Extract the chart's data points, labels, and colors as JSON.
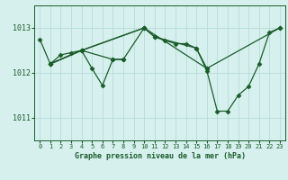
{
  "title": "Graphe pression niveau de la mer (hPa)",
  "bg_color": "#d6f0ee",
  "grid_color": "#b8dcd8",
  "line_color": "#1a5c2a",
  "xlim": [
    -0.5,
    23.5
  ],
  "ylim": [
    1010.5,
    1013.5
  ],
  "yticks": [
    1011,
    1012,
    1013
  ],
  "xticks": [
    0,
    1,
    2,
    3,
    4,
    5,
    6,
    7,
    8,
    9,
    10,
    11,
    12,
    13,
    14,
    15,
    16,
    17,
    18,
    19,
    20,
    21,
    22,
    23
  ],
  "series1_x": [
    0,
    1,
    2,
    3,
    4,
    5,
    6,
    7,
    8
  ],
  "series1_y": [
    1012.75,
    1012.2,
    1012.4,
    1012.45,
    1012.5,
    1012.1,
    1011.72,
    1012.3,
    1012.3
  ],
  "series2_x": [
    1,
    4,
    7,
    8,
    10,
    11,
    12,
    13,
    14,
    15,
    16
  ],
  "series2_y": [
    1012.2,
    1012.5,
    1012.3,
    1012.3,
    1013.0,
    1012.8,
    1012.72,
    1012.65,
    1012.65,
    1012.55,
    1012.1
  ],
  "series3_x": [
    1,
    4,
    10,
    11,
    15,
    16,
    17,
    18,
    19,
    20,
    21,
    22,
    23
  ],
  "series3_y": [
    1012.2,
    1012.5,
    1013.0,
    1012.8,
    1012.55,
    1012.05,
    1011.15,
    1011.15,
    1011.5,
    1011.7,
    1012.2,
    1012.9,
    1013.0
  ],
  "series4_x": [
    1,
    4,
    10,
    16,
    23
  ],
  "series4_y": [
    1012.2,
    1012.5,
    1013.0,
    1012.1,
    1013.0
  ]
}
